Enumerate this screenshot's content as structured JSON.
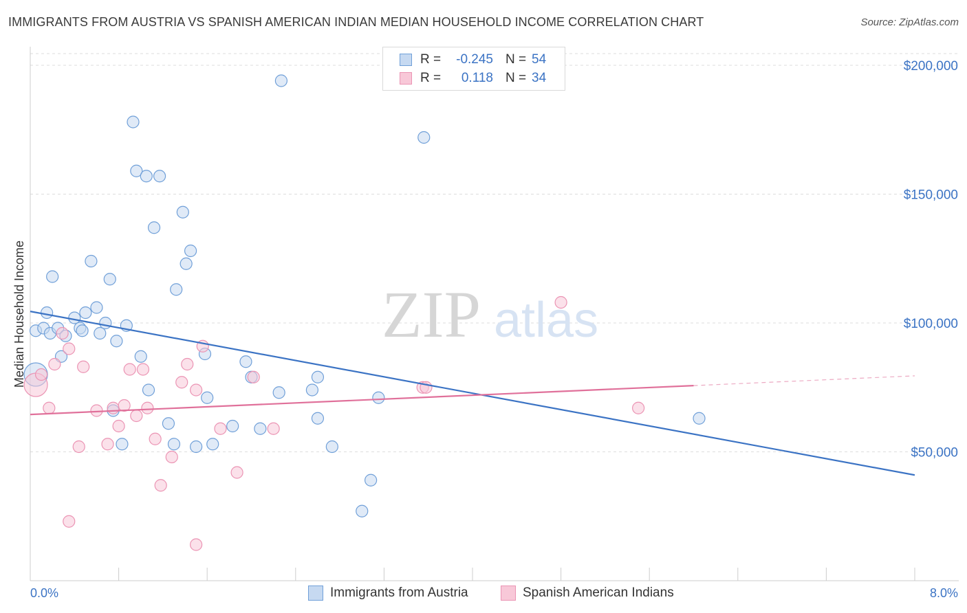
{
  "title": "IMMIGRANTS FROM AUSTRIA VS SPANISH AMERICAN INDIAN MEDIAN HOUSEHOLD INCOME CORRELATION CHART",
  "source": "Source: ZipAtlas.com",
  "watermark": {
    "zip": "ZIP",
    "atlas": "atlas"
  },
  "legend_top": {
    "rows": [
      {
        "r_label": "R =",
        "r_value": "-0.245",
        "n_label": "N =",
        "n_value": "54"
      },
      {
        "r_label": "R =",
        "r_value": "0.118",
        "n_label": "N =",
        "n_value": "34"
      }
    ]
  },
  "colors": {
    "blue": "#3b73c4",
    "blue_fill": "#c6d9f1",
    "blue_stroke": "#6f9fd8",
    "pink": "#e0709a",
    "pink_fill": "#f8c8d8",
    "pink_stroke": "#eb93b3",
    "grid": "#dddddd",
    "axis": "#cccccc"
  },
  "chart_data": {
    "type": "scatter",
    "title": "IMMIGRANTS FROM AUSTRIA VS SPANISH AMERICAN INDIAN MEDIAN HOUSEHOLD INCOME CORRELATION CHART",
    "xlabel": "",
    "ylabel": "Median Household Income",
    "xlim": [
      0,
      8
    ],
    "ylim": [
      0,
      200000
    ],
    "x_tick_labels": [
      "0.0%",
      "8.0%"
    ],
    "y_ticks": [
      50000,
      100000,
      150000,
      200000
    ],
    "y_tick_labels": [
      "$50,000",
      "$100,000",
      "$150,000",
      "$200,000"
    ],
    "grid": true,
    "legend": [
      "Immigrants from Austria",
      "Spanish American Indians"
    ],
    "series": [
      {
        "name": "Immigrants from Austria",
        "color": "#6f9fd8",
        "r": "-0.245",
        "n": "54",
        "trend": {
          "x0": 0.0,
          "y0": 104500,
          "x1": 8.0,
          "y1": 41000
        },
        "points": [
          [
            0.05,
            80000
          ],
          [
            0.05,
            97000
          ],
          [
            0.12,
            98000
          ],
          [
            0.15,
            104000
          ],
          [
            0.18,
            96000
          ],
          [
            0.2,
            118000
          ],
          [
            0.25,
            98000
          ],
          [
            0.28,
            87000
          ],
          [
            0.32,
            95000
          ],
          [
            0.4,
            102000
          ],
          [
            0.45,
            98000
          ],
          [
            0.47,
            97000
          ],
          [
            0.5,
            104000
          ],
          [
            0.55,
            124000
          ],
          [
            0.6,
            106000
          ],
          [
            0.63,
            96000
          ],
          [
            0.68,
            100000
          ],
          [
            0.72,
            117000
          ],
          [
            0.75,
            66000
          ],
          [
            0.78,
            93000
          ],
          [
            0.83,
            53000
          ],
          [
            0.87,
            99000
          ],
          [
            0.93,
            178000
          ],
          [
            0.96,
            159000
          ],
          [
            1.0,
            87000
          ],
          [
            1.05,
            157000
          ],
          [
            1.07,
            74000
          ],
          [
            1.12,
            137000
          ],
          [
            1.17,
            157000
          ],
          [
            1.25,
            61000
          ],
          [
            1.3,
            53000
          ],
          [
            1.32,
            113000
          ],
          [
            1.38,
            143000
          ],
          [
            1.41,
            123000
          ],
          [
            1.45,
            128000
          ],
          [
            1.5,
            52000
          ],
          [
            1.58,
            88000
          ],
          [
            1.6,
            71000
          ],
          [
            1.65,
            53000
          ],
          [
            1.83,
            60000
          ],
          [
            1.95,
            85000
          ],
          [
            2.0,
            79000
          ],
          [
            2.08,
            59000
          ],
          [
            2.25,
            73000
          ],
          [
            2.27,
            194000
          ],
          [
            2.55,
            74000
          ],
          [
            2.6,
            63000
          ],
          [
            2.6,
            79000
          ],
          [
            2.73,
            52000
          ],
          [
            3.0,
            27000
          ],
          [
            3.08,
            39000
          ],
          [
            3.15,
            71000
          ],
          [
            3.56,
            172000
          ],
          [
            6.05,
            63000
          ]
        ]
      },
      {
        "name": "Spanish American Indians",
        "color": "#eb93b3",
        "r": "0.118",
        "n": "34",
        "trend": {
          "x0": 0.0,
          "y0": 64500,
          "x1": 6.0,
          "y1": 75700
        },
        "trend_dashed": {
          "x0": 6.0,
          "y0": 75700,
          "x1": 8.0,
          "y1": 79500
        },
        "points": [
          [
            0.05,
            76000
          ],
          [
            0.1,
            80000
          ],
          [
            0.17,
            67000
          ],
          [
            0.22,
            84000
          ],
          [
            0.29,
            96000
          ],
          [
            0.35,
            90000
          ],
          [
            0.44,
            52000
          ],
          [
            0.48,
            83000
          ],
          [
            0.6,
            66000
          ],
          [
            0.7,
            53000
          ],
          [
            0.75,
            67000
          ],
          [
            0.8,
            60000
          ],
          [
            0.85,
            68000
          ],
          [
            0.9,
            82000
          ],
          [
            0.96,
            64000
          ],
          [
            1.02,
            82000
          ],
          [
            1.06,
            67000
          ],
          [
            1.13,
            55000
          ],
          [
            1.18,
            37000
          ],
          [
            1.28,
            48000
          ],
          [
            1.37,
            77000
          ],
          [
            1.42,
            84000
          ],
          [
            1.5,
            14000
          ],
          [
            1.5,
            74000
          ],
          [
            1.56,
            91000
          ],
          [
            1.72,
            59000
          ],
          [
            1.87,
            42000
          ],
          [
            2.02,
            79000
          ],
          [
            2.2,
            59000
          ],
          [
            3.55,
            75000
          ],
          [
            3.58,
            75000
          ],
          [
            4.8,
            108000
          ],
          [
            5.5,
            67000
          ],
          [
            0.35,
            23000
          ]
        ]
      }
    ]
  },
  "legend_bottom": [
    {
      "label": "Immigrants from Austria"
    },
    {
      "label": "Spanish American Indians"
    }
  ]
}
